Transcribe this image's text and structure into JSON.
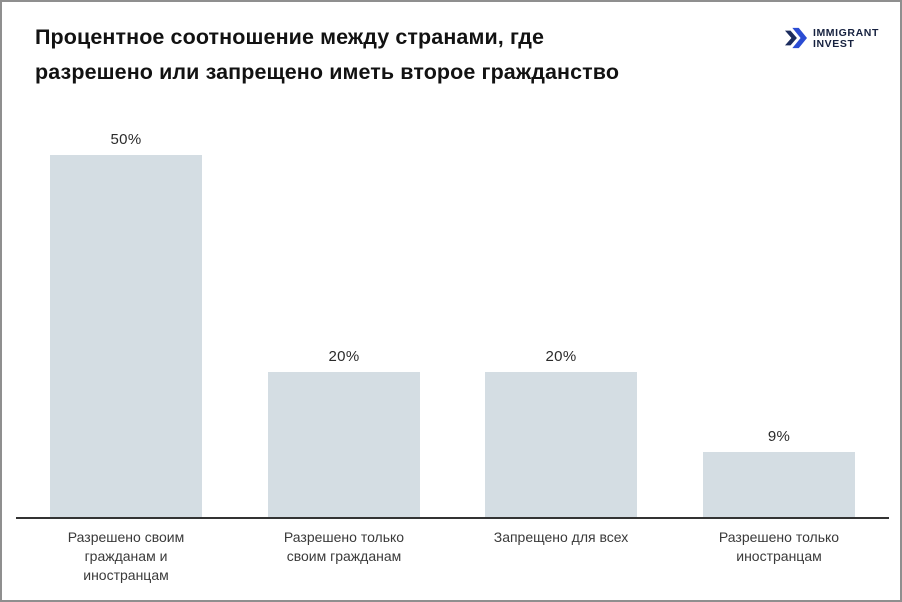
{
  "page": {
    "background": "#ffffff",
    "border_color": "#8f8f8f"
  },
  "header": {
    "title_lines": [
      "Процентное соотношение между странами, где",
      "разрешено или запрещено иметь второе гражданство"
    ],
    "logo": {
      "line1": "IMMIGRANT",
      "line2": "INVEST",
      "icon": "double-chevron-right-icon",
      "icon_color_primary": "#2b4cd3",
      "icon_color_dark": "#1c2c5e",
      "text_color": "#16213f"
    }
  },
  "chart_data": {
    "type": "bar",
    "title": "Процентное соотношение между странами, где разрешено или запрещено иметь второе гражданство",
    "categories": [
      "Разрешено своим гражданам и иностранцам",
      "Разрешено только своим гражданам",
      "Запрещено для всех",
      "Разрешено только иностранцам"
    ],
    "category_lines": [
      [
        "Разрешено своим",
        "гражданам и",
        "иностранцам"
      ],
      [
        "Разрешено только",
        "своим гражданам"
      ],
      [
        "Запрещено для всех"
      ],
      [
        "Разрешено только",
        "иностранцам"
      ]
    ],
    "values": [
      50,
      20,
      20,
      9
    ],
    "value_labels": [
      "50%",
      "20%",
      "20%",
      "9%"
    ],
    "xlabel": "",
    "ylabel": "",
    "ylim": [
      0,
      53.5
    ],
    "grid": false,
    "legend": false,
    "bar_color": "#d4dde3",
    "axis_color": "#333333",
    "value_label_color": "#2b2b2b",
    "category_label_color": "#3a3a3a"
  }
}
